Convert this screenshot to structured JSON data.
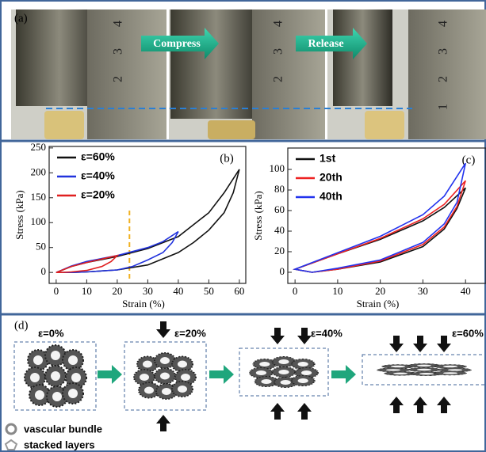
{
  "panel_a": {
    "label": "(a)",
    "arrows": [
      "Compress",
      "Release"
    ],
    "ruler_labels": [
      [
        "4",
        "3",
        "2"
      ],
      [
        "4",
        "3",
        "2"
      ],
      [
        "4",
        "3",
        "2",
        "1"
      ]
    ]
  },
  "chart_data": [
    {
      "type": "line",
      "panel_label": "(b)",
      "x_label": "Strain (%)",
      "y_label": "Stress (kPa)",
      "xlim": [
        -2.3,
        62.1
      ],
      "ylim": [
        -22,
        253
      ],
      "xticks": [
        0,
        10,
        20,
        30,
        40,
        50,
        60
      ],
      "yticks": [
        0,
        50,
        100,
        150,
        200,
        250
      ],
      "legend": "upper left",
      "reference_line_x": 24,
      "reference_color": "#f0b020",
      "series": [
        {
          "name": "ε=60%",
          "color": "#111111",
          "x": [
            0,
            5,
            10,
            20,
            30,
            40,
            50,
            55,
            60,
            58,
            55,
            50,
            45,
            40,
            30,
            20,
            10,
            5
          ],
          "values": [
            0,
            12,
            20,
            32,
            48,
            72,
            120,
            160,
            207,
            160,
            120,
            85,
            60,
            40,
            15,
            5,
            1,
            0
          ]
        },
        {
          "name": "ε=40%",
          "color": "#2233dd",
          "x": [
            0,
            5,
            10,
            20,
            30,
            35,
            40,
            38,
            35,
            30,
            25,
            20,
            10,
            5
          ],
          "values": [
            0,
            13,
            22,
            34,
            50,
            62,
            82,
            60,
            40,
            25,
            12,
            5,
            1,
            0
          ]
        },
        {
          "name": "ε=20%",
          "color": "#e02020",
          "x": [
            0,
            5,
            10,
            15,
            20,
            18,
            15,
            10,
            5,
            2
          ],
          "values": [
            0,
            12,
            20,
            27,
            34,
            22,
            12,
            4,
            1,
            0
          ]
        }
      ]
    },
    {
      "type": "line",
      "panel_label": "(c)",
      "x_label": "Strain (%)",
      "y_label": "Stress (kPa)",
      "xlim": [
        -1.7,
        44.8
      ],
      "ylim": [
        -10.8,
        120.8
      ],
      "xticks": [
        0,
        10,
        20,
        30,
        40
      ],
      "yticks": [
        0,
        20,
        40,
        60,
        80,
        100
      ],
      "legend": "upper left",
      "series": [
        {
          "name": "1st",
          "color": "#111111",
          "x": [
            0,
            10,
            20,
            30,
            35,
            40,
            38,
            35,
            30,
            20,
            10,
            4
          ],
          "values": [
            3,
            18,
            32,
            50,
            63,
            82,
            62,
            42,
            25,
            10,
            3,
            0
          ]
        },
        {
          "name": "20th",
          "color": "#ee2222",
          "x": [
            0,
            10,
            20,
            30,
            35,
            40,
            38,
            35,
            30,
            20,
            10,
            4
          ],
          "values": [
            3,
            18,
            33,
            52,
            66,
            89,
            64,
            44,
            27,
            11,
            3,
            0
          ]
        },
        {
          "name": "40th",
          "color": "#2233ee",
          "x": [
            0,
            10,
            20,
            30,
            35,
            40,
            38,
            35,
            30,
            20,
            10,
            4
          ],
          "values": [
            3,
            19,
            35,
            56,
            74,
            106,
            68,
            47,
            29,
            12,
            4,
            0
          ]
        }
      ]
    }
  ],
  "panel_d": {
    "label": "(d)",
    "states": [
      "ε=0%",
      "ε=20%",
      "ε=40%",
      "ε=60%"
    ],
    "legend": [
      "vascular bundle",
      "stacked layers"
    ]
  }
}
